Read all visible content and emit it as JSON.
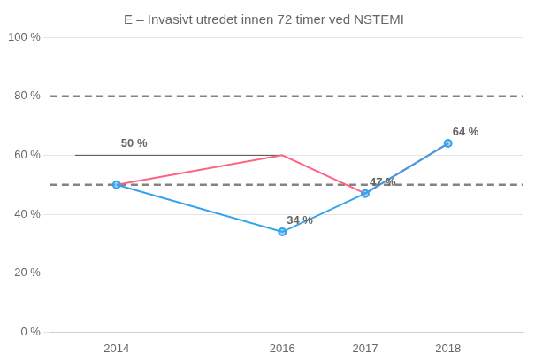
{
  "chart_data": {
    "type": "line",
    "title": "E – Invasivt utredet innen 72 timer ved NSTEMI",
    "x": [
      2014,
      2016,
      2017,
      2018
    ],
    "series": [
      {
        "values": [
          50,
          34,
          47,
          64
        ],
        "marker": "o",
        "line_style": "solid"
      },
      {
        "values": [
          50,
          60,
          47,
          64
        ],
        "marker": "none",
        "line_style": "solid"
      }
    ],
    "xlim": [
      2013.2,
      2018.9
    ],
    "xticks": [
      2014,
      2016,
      2017,
      2018
    ],
    "ylim": [
      0,
      100
    ],
    "yticks": [
      {
        "value": 0,
        "label": "0 %"
      },
      {
        "value": 20,
        "label": "20 %"
      },
      {
        "value": 40,
        "label": "40 %"
      },
      {
        "value": 60,
        "label": "60 %"
      },
      {
        "value": 80,
        "label": "80 %"
      },
      {
        "value": 100,
        "label": "100 %"
      }
    ],
    "grid": "y",
    "reference_lines": [
      {
        "value": 80,
        "line_style": "dashed"
      },
      {
        "value": 50,
        "line_style": "dashed"
      }
    ],
    "segments": [
      {
        "x": [
          2013.5,
          2016
        ],
        "y": [
          60,
          60
        ]
      }
    ],
    "annotations": [
      {
        "text": "50 %",
        "x": 2014,
        "y": 60
      },
      {
        "text": "34 %",
        "x": 2016,
        "y": 34
      },
      {
        "text": "47 %",
        "x": 2017,
        "y": 47
      },
      {
        "text": "64 %",
        "x": 2018,
        "y": 64
      }
    ]
  }
}
